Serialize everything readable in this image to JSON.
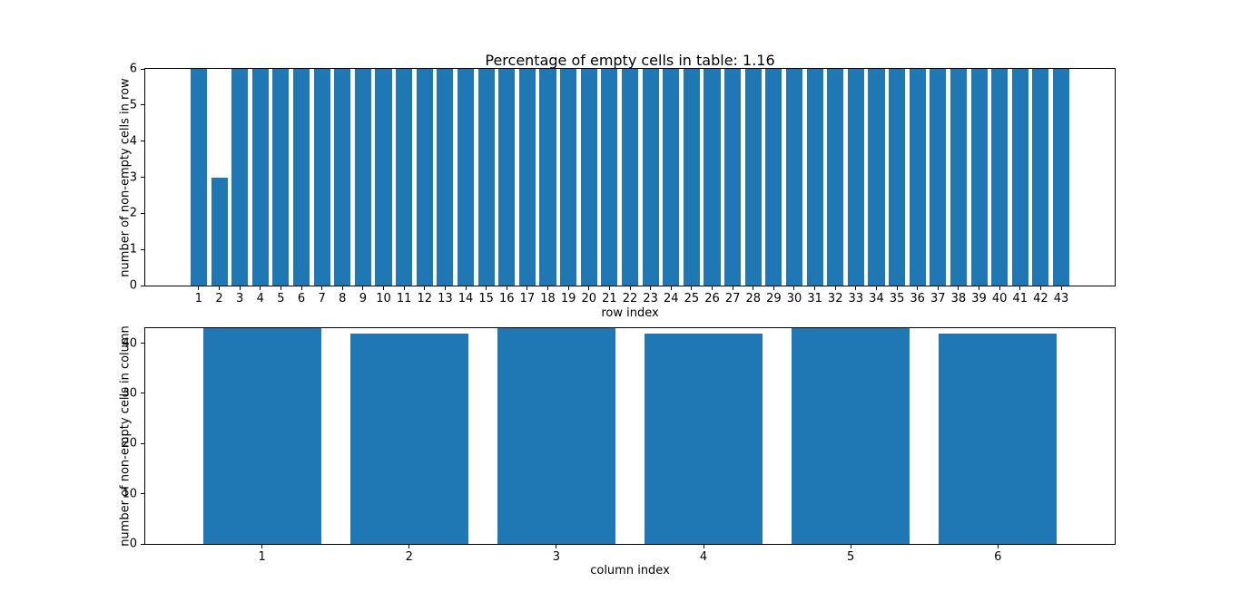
{
  "figure": {
    "background": "#ffffff",
    "bar_color": "#1f77b4",
    "spine_color": "#000000"
  },
  "chart_data": [
    {
      "type": "bar",
      "title": "Percentage of empty cells in table: 1.16",
      "xlabel": "row index",
      "ylabel": "number of non-empty cells in row",
      "categories": [
        1,
        2,
        3,
        4,
        5,
        6,
        7,
        8,
        9,
        10,
        11,
        12,
        13,
        14,
        15,
        16,
        17,
        18,
        19,
        20,
        21,
        22,
        23,
        24,
        25,
        26,
        27,
        28,
        29,
        30,
        31,
        32,
        33,
        34,
        35,
        36,
        37,
        38,
        39,
        40,
        41,
        42,
        43
      ],
      "values": [
        6,
        3,
        6,
        6,
        6,
        6,
        6,
        6,
        6,
        6,
        6,
        6,
        6,
        6,
        6,
        6,
        6,
        6,
        6,
        6,
        6,
        6,
        6,
        6,
        6,
        6,
        6,
        6,
        6,
        6,
        6,
        6,
        6,
        6,
        6,
        6,
        6,
        6,
        6,
        6,
        6,
        6,
        6
      ],
      "ylim": [
        0,
        6
      ],
      "yticks": [
        0,
        1,
        2,
        3,
        4,
        5,
        6
      ],
      "bar_width": 0.8,
      "grid": false,
      "legend": null
    },
    {
      "type": "bar",
      "title": "",
      "xlabel": "column index",
      "ylabel": "number of non-empty cells in column",
      "categories": [
        1,
        2,
        3,
        4,
        5,
        6
      ],
      "values": [
        43,
        42,
        43,
        42,
        43,
        42
      ],
      "ylim": [
        0,
        43
      ],
      "yticks": [
        0,
        10,
        20,
        30,
        40
      ],
      "bar_width": 0.8,
      "grid": false,
      "legend": null
    }
  ]
}
